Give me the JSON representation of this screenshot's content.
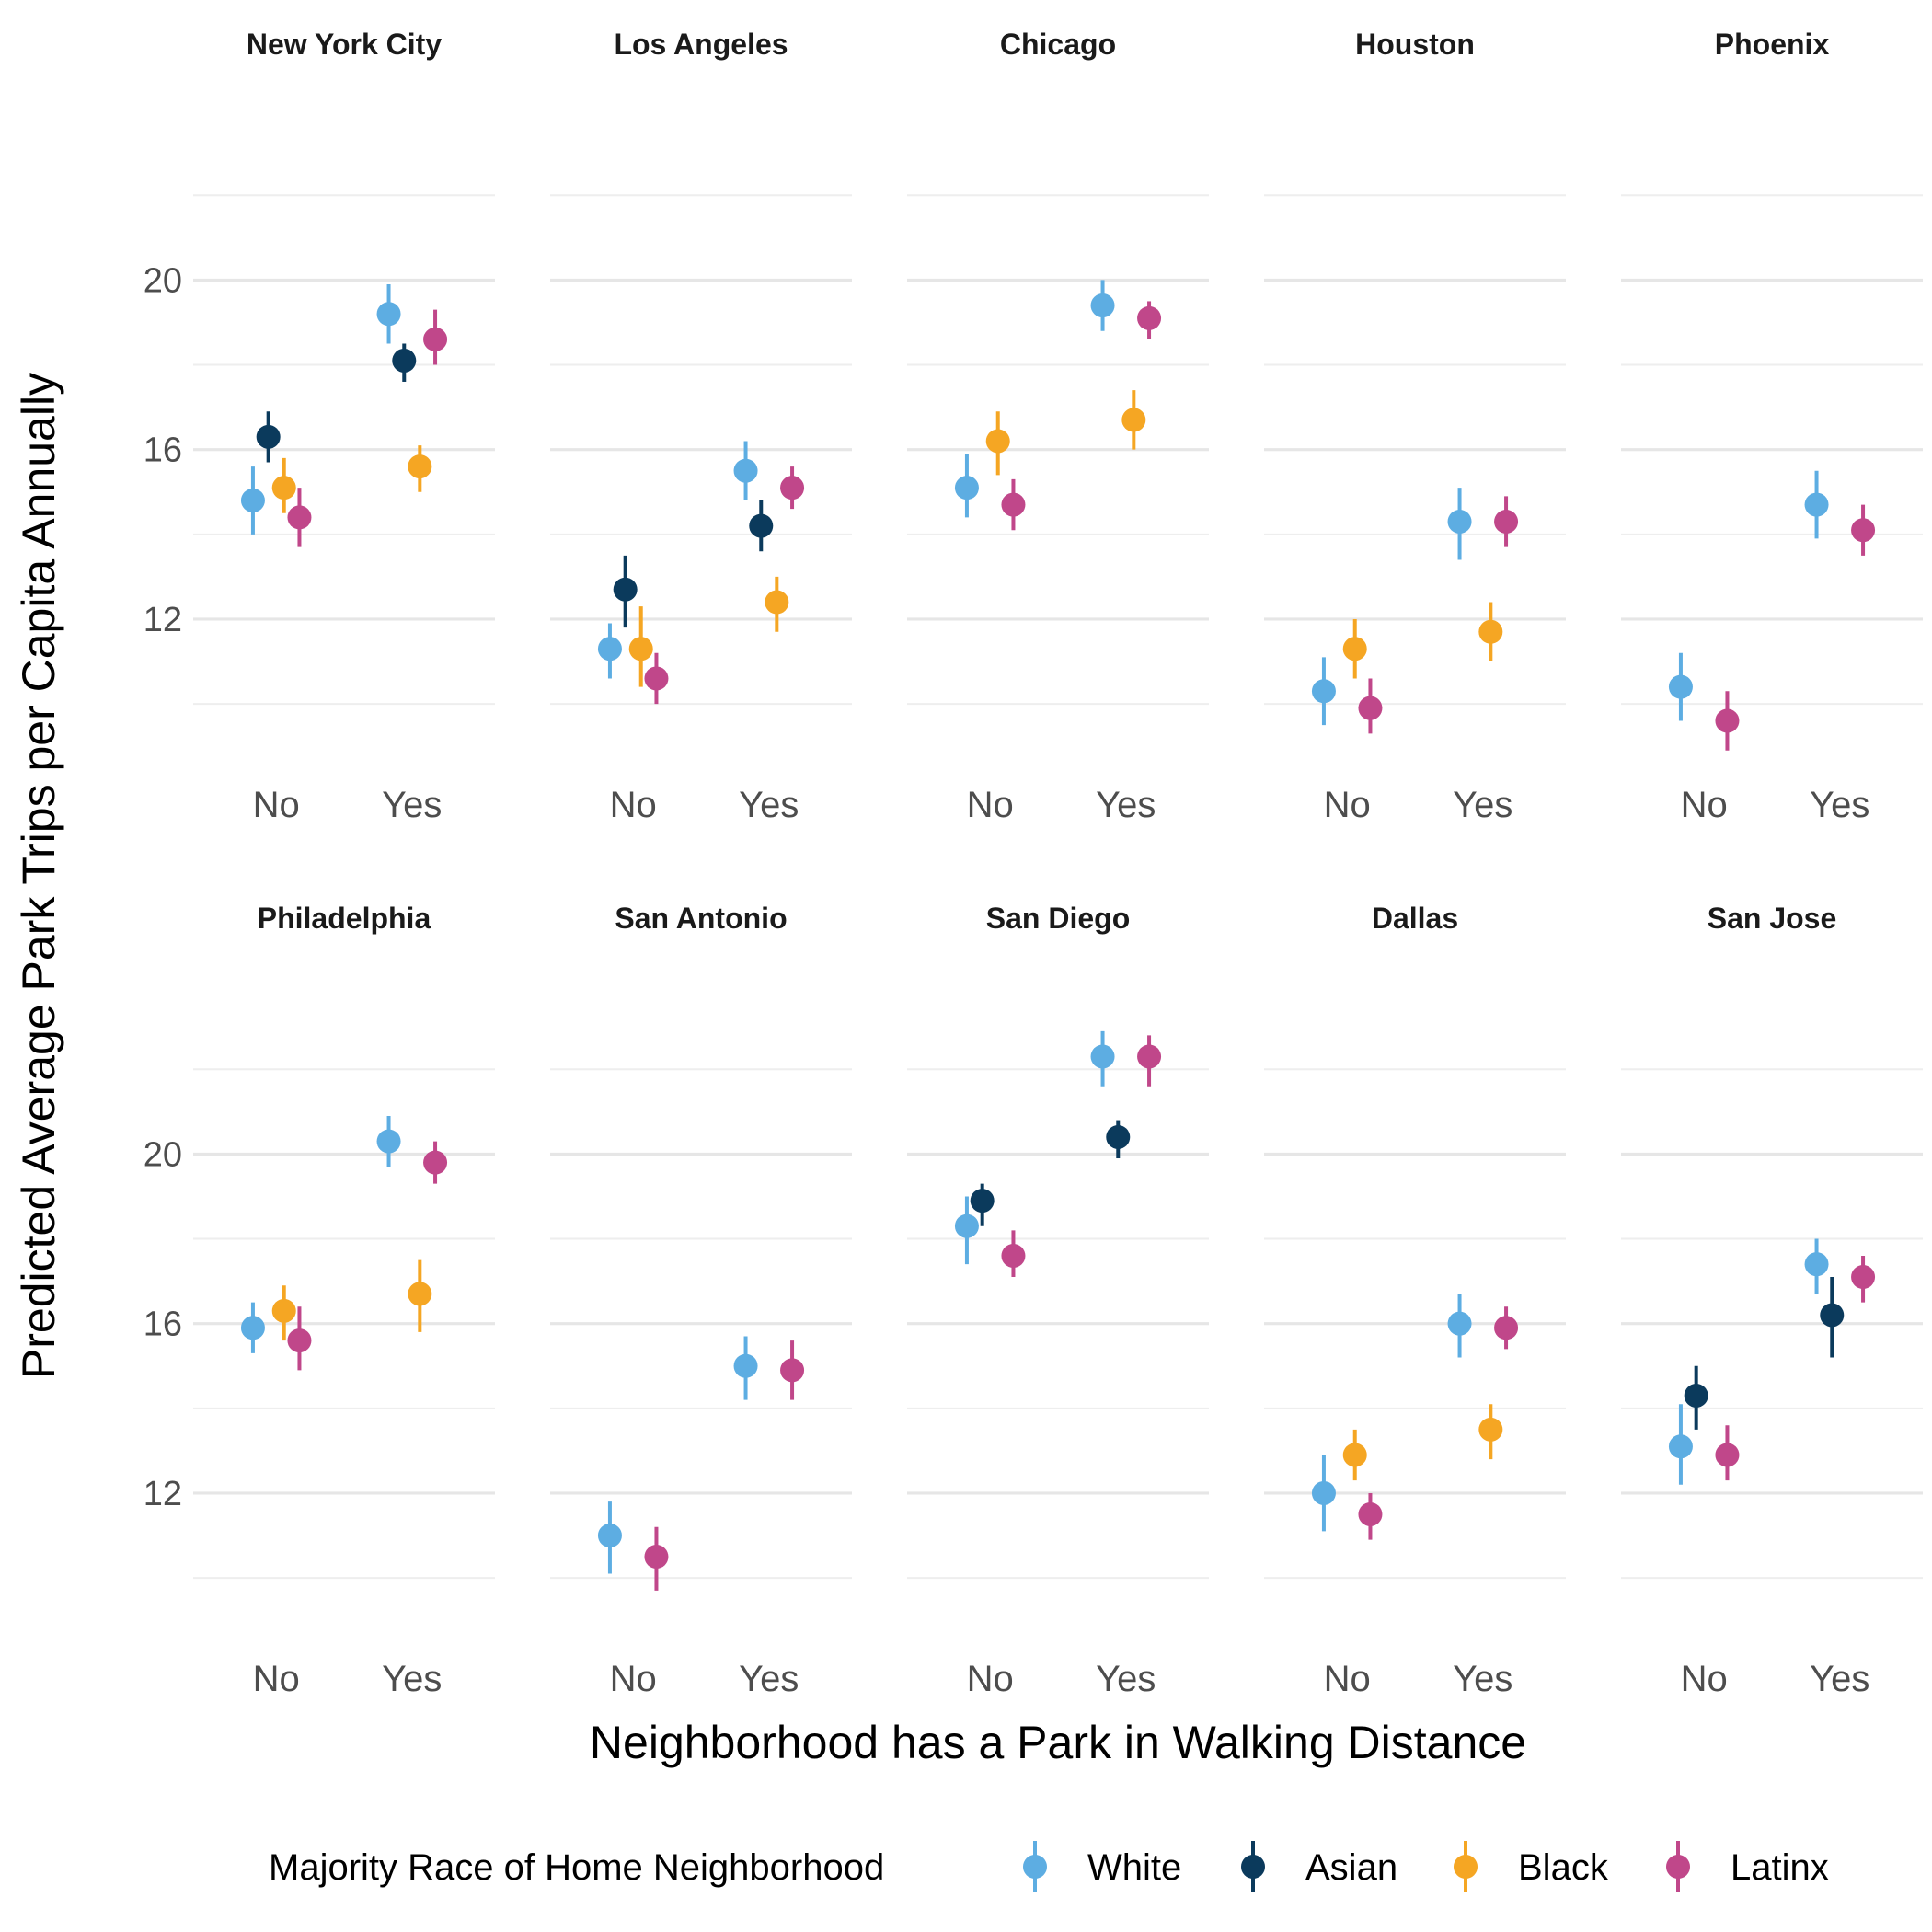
{
  "chart_data": {
    "type": "scatter",
    "subtype": "faceted point-range",
    "xlabel": "Neighborhood has a Park in Walking Distance",
    "ylabel": "Predicted Average Park Trips per Capita Annually",
    "categories": [
      "No",
      "Yes"
    ],
    "yticks": [
      12,
      16,
      20
    ],
    "ylim": [
      8.2,
      23.2
    ],
    "grid": true,
    "legend": {
      "title": "Majority Race of Home Neighborhood",
      "position": "bottom",
      "items": [
        {
          "name": "White",
          "color": "#5DADE2"
        },
        {
          "name": "Asian",
          "color": "#0B3A5C"
        },
        {
          "name": "Black",
          "color": "#F5A623"
        },
        {
          "name": "Latinx",
          "color": "#C0478A"
        }
      ]
    },
    "panels": [
      {
        "title": "New York City",
        "series": [
          {
            "name": "White",
            "points": [
              {
                "x": "No",
                "y": 14.8,
                "lo": 14.0,
                "hi": 15.6
              },
              {
                "x": "Yes",
                "y": 19.2,
                "lo": 18.5,
                "hi": 19.9
              }
            ]
          },
          {
            "name": "Asian",
            "points": [
              {
                "x": "No",
                "y": 16.3,
                "lo": 15.7,
                "hi": 16.9
              },
              {
                "x": "Yes",
                "y": 18.1,
                "lo": 17.6,
                "hi": 18.5
              }
            ]
          },
          {
            "name": "Black",
            "points": [
              {
                "x": "No",
                "y": 15.1,
                "lo": 14.5,
                "hi": 15.8
              },
              {
                "x": "Yes",
                "y": 15.6,
                "lo": 15.0,
                "hi": 16.1
              }
            ]
          },
          {
            "name": "Latinx",
            "points": [
              {
                "x": "No",
                "y": 14.4,
                "lo": 13.7,
                "hi": 15.1
              },
              {
                "x": "Yes",
                "y": 18.6,
                "lo": 18.0,
                "hi": 19.3
              }
            ]
          }
        ]
      },
      {
        "title": "Los Angeles",
        "series": [
          {
            "name": "White",
            "points": [
              {
                "x": "No",
                "y": 11.3,
                "lo": 10.6,
                "hi": 11.9
              },
              {
                "x": "Yes",
                "y": 15.5,
                "lo": 14.8,
                "hi": 16.2
              }
            ]
          },
          {
            "name": "Asian",
            "points": [
              {
                "x": "No",
                "y": 12.7,
                "lo": 11.8,
                "hi": 13.5
              },
              {
                "x": "Yes",
                "y": 14.2,
                "lo": 13.6,
                "hi": 14.8
              }
            ]
          },
          {
            "name": "Black",
            "points": [
              {
                "x": "No",
                "y": 11.3,
                "lo": 10.4,
                "hi": 12.3
              },
              {
                "x": "Yes",
                "y": 12.4,
                "lo": 11.7,
                "hi": 13.0
              }
            ]
          },
          {
            "name": "Latinx",
            "points": [
              {
                "x": "No",
                "y": 10.6,
                "lo": 10.0,
                "hi": 11.2
              },
              {
                "x": "Yes",
                "y": 15.1,
                "lo": 14.6,
                "hi": 15.6
              }
            ]
          }
        ]
      },
      {
        "title": "Chicago",
        "series": [
          {
            "name": "White",
            "points": [
              {
                "x": "No",
                "y": 15.1,
                "lo": 14.4,
                "hi": 15.9
              },
              {
                "x": "Yes",
                "y": 19.4,
                "lo": 18.8,
                "hi": 20.0
              }
            ]
          },
          {
            "name": "Black",
            "points": [
              {
                "x": "No",
                "y": 16.2,
                "lo": 15.4,
                "hi": 16.9
              },
              {
                "x": "Yes",
                "y": 16.7,
                "lo": 16.0,
                "hi": 17.4
              }
            ]
          },
          {
            "name": "Latinx",
            "points": [
              {
                "x": "No",
                "y": 14.7,
                "lo": 14.1,
                "hi": 15.3
              },
              {
                "x": "Yes",
                "y": 19.1,
                "lo": 18.6,
                "hi": 19.5
              }
            ]
          }
        ]
      },
      {
        "title": "Houston",
        "series": [
          {
            "name": "White",
            "points": [
              {
                "x": "No",
                "y": 10.3,
                "lo": 9.5,
                "hi": 11.1
              },
              {
                "x": "Yes",
                "y": 14.3,
                "lo": 13.4,
                "hi": 15.1
              }
            ]
          },
          {
            "name": "Black",
            "points": [
              {
                "x": "No",
                "y": 11.3,
                "lo": 10.6,
                "hi": 12.0
              },
              {
                "x": "Yes",
                "y": 11.7,
                "lo": 11.0,
                "hi": 12.4
              }
            ]
          },
          {
            "name": "Latinx",
            "points": [
              {
                "x": "No",
                "y": 9.9,
                "lo": 9.3,
                "hi": 10.6
              },
              {
                "x": "Yes",
                "y": 14.3,
                "lo": 13.7,
                "hi": 14.9
              }
            ]
          }
        ]
      },
      {
        "title": "Phoenix",
        "series": [
          {
            "name": "White",
            "points": [
              {
                "x": "No",
                "y": 10.4,
                "lo": 9.6,
                "hi": 11.2
              },
              {
                "x": "Yes",
                "y": 14.7,
                "lo": 13.9,
                "hi": 15.5
              }
            ]
          },
          {
            "name": "Latinx",
            "points": [
              {
                "x": "No",
                "y": 9.6,
                "lo": 8.9,
                "hi": 10.3
              },
              {
                "x": "Yes",
                "y": 14.1,
                "lo": 13.5,
                "hi": 14.7
              }
            ]
          }
        ]
      },
      {
        "title": "Philadelphia",
        "series": [
          {
            "name": "White",
            "points": [
              {
                "x": "No",
                "y": 15.9,
                "lo": 15.3,
                "hi": 16.5
              },
              {
                "x": "Yes",
                "y": 20.3,
                "lo": 19.7,
                "hi": 20.9
              }
            ]
          },
          {
            "name": "Black",
            "points": [
              {
                "x": "No",
                "y": 16.3,
                "lo": 15.6,
                "hi": 16.9
              },
              {
                "x": "Yes",
                "y": 16.7,
                "lo": 15.8,
                "hi": 17.5
              }
            ]
          },
          {
            "name": "Latinx",
            "points": [
              {
                "x": "No",
                "y": 15.6,
                "lo": 14.9,
                "hi": 16.4
              },
              {
                "x": "Yes",
                "y": 19.8,
                "lo": 19.3,
                "hi": 20.3
              }
            ]
          }
        ]
      },
      {
        "title": "San Antonio",
        "series": [
          {
            "name": "White",
            "points": [
              {
                "x": "No",
                "y": 11.0,
                "lo": 10.1,
                "hi": 11.8
              },
              {
                "x": "Yes",
                "y": 15.0,
                "lo": 14.2,
                "hi": 15.7
              }
            ]
          },
          {
            "name": "Latinx",
            "points": [
              {
                "x": "No",
                "y": 10.5,
                "lo": 9.7,
                "hi": 11.2
              },
              {
                "x": "Yes",
                "y": 14.9,
                "lo": 14.2,
                "hi": 15.6
              }
            ]
          }
        ]
      },
      {
        "title": "San Diego",
        "series": [
          {
            "name": "White",
            "points": [
              {
                "x": "No",
                "y": 18.3,
                "lo": 17.4,
                "hi": 19.0
              },
              {
                "x": "Yes",
                "y": 22.3,
                "lo": 21.6,
                "hi": 22.9
              }
            ]
          },
          {
            "name": "Asian",
            "points": [
              {
                "x": "No",
                "y": 18.9,
                "lo": 18.3,
                "hi": 19.3
              },
              {
                "x": "Yes",
                "y": 20.4,
                "lo": 19.9,
                "hi": 20.8
              }
            ]
          },
          {
            "name": "Latinx",
            "points": [
              {
                "x": "No",
                "y": 17.6,
                "lo": 17.1,
                "hi": 18.2
              },
              {
                "x": "Yes",
                "y": 22.3,
                "lo": 21.6,
                "hi": 22.8
              }
            ]
          }
        ]
      },
      {
        "title": "Dallas",
        "series": [
          {
            "name": "White",
            "points": [
              {
                "x": "No",
                "y": 12.0,
                "lo": 11.1,
                "hi": 12.9
              },
              {
                "x": "Yes",
                "y": 16.0,
                "lo": 15.2,
                "hi": 16.7
              }
            ]
          },
          {
            "name": "Black",
            "points": [
              {
                "x": "No",
                "y": 12.9,
                "lo": 12.3,
                "hi": 13.5
              },
              {
                "x": "Yes",
                "y": 13.5,
                "lo": 12.8,
                "hi": 14.1
              }
            ]
          },
          {
            "name": "Latinx",
            "points": [
              {
                "x": "No",
                "y": 11.5,
                "lo": 10.9,
                "hi": 12.0
              },
              {
                "x": "Yes",
                "y": 15.9,
                "lo": 15.4,
                "hi": 16.4
              }
            ]
          }
        ]
      },
      {
        "title": "San Jose",
        "series": [
          {
            "name": "White",
            "points": [
              {
                "x": "No",
                "y": 13.1,
                "lo": 12.2,
                "hi": 14.1
              },
              {
                "x": "Yes",
                "y": 17.4,
                "lo": 16.7,
                "hi": 18.0
              }
            ]
          },
          {
            "name": "Asian",
            "points": [
              {
                "x": "No",
                "y": 14.3,
                "lo": 13.5,
                "hi": 15.0
              },
              {
                "x": "Yes",
                "y": 16.2,
                "lo": 15.2,
                "hi": 17.1
              }
            ]
          },
          {
            "name": "Latinx",
            "points": [
              {
                "x": "No",
                "y": 12.9,
                "lo": 12.3,
                "hi": 13.6
              },
              {
                "x": "Yes",
                "y": 17.1,
                "lo": 16.5,
                "hi": 17.6
              }
            ]
          }
        ]
      }
    ]
  }
}
